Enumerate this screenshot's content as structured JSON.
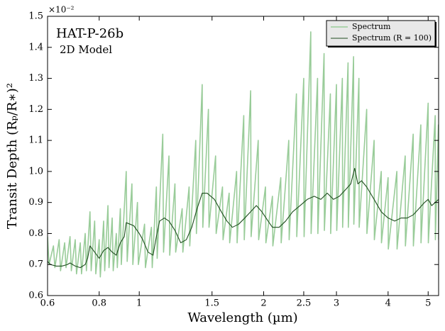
{
  "chart_data": {
    "type": "line",
    "title": "HAT-P-26b",
    "subtitle": "2D Model",
    "xlabel": "Wavelength (µm)",
    "ylabel": "Transit Depth (Rₚ/R∗)²",
    "y_offset_label": "×10⁻²",
    "xscale": "log",
    "xlim": [
      0.6,
      5.3
    ],
    "xticks": [
      0.6,
      0.8,
      1,
      1.5,
      2,
      2.5,
      3,
      4,
      5
    ],
    "ylim": [
      0.6,
      1.5
    ],
    "yticks": [
      0.6,
      0.7,
      0.8,
      0.9,
      {
        "value": 1,
        "label": "1.0"
      },
      1.1,
      1.2,
      1.3,
      1.4,
      1.5
    ],
    "legend": "upper right",
    "series": [
      {
        "name": "Spectrum",
        "color": "#99cc99",
        "x": [
          0.6,
          0.605,
          0.62,
          0.625,
          0.64,
          0.645,
          0.66,
          0.665,
          0.68,
          0.685,
          0.7,
          0.705,
          0.72,
          0.725,
          0.74,
          0.745,
          0.76,
          0.765,
          0.78,
          0.785,
          0.8,
          0.805,
          0.82,
          0.825,
          0.84,
          0.845,
          0.86,
          0.865,
          0.88,
          0.885,
          0.9,
          0.905,
          0.93,
          0.935,
          0.96,
          0.965,
          0.99,
          0.995,
          1.03,
          1.035,
          1.07,
          1.075,
          1.1,
          1.105,
          1.14,
          1.145,
          1.18,
          1.185,
          1.22,
          1.225,
          1.27,
          1.275,
          1.32,
          1.325,
          1.37,
          1.375,
          1.42,
          1.425,
          1.47,
          1.475,
          1.53,
          1.535,
          1.59,
          1.595,
          1.65,
          1.655,
          1.72,
          1.725,
          1.79,
          1.795,
          1.86,
          1.865,
          1.94,
          1.945,
          2.02,
          2.025,
          2.1,
          2.105,
          2.2,
          2.205,
          2.3,
          2.305,
          2.4,
          2.405,
          2.5,
          2.505,
          2.6,
          2.605,
          2.7,
          2.705,
          2.8,
          2.805,
          2.9,
          2.905,
          3.0,
          3.005,
          3.1,
          3.105,
          3.2,
          3.205,
          3.3,
          3.305,
          3.4,
          3.405,
          3.55,
          3.555,
          3.7,
          3.705,
          3.85,
          3.855,
          4.0,
          4.005,
          4.2,
          4.205,
          4.4,
          4.405,
          4.6,
          4.605,
          4.8,
          4.805,
          5.0,
          5.005,
          5.2,
          5.205,
          5.295,
          5.3
        ],
        "values": [
          0.79,
          0.7,
          0.76,
          0.69,
          0.78,
          0.68,
          0.77,
          0.69,
          0.79,
          0.68,
          0.78,
          0.67,
          0.77,
          0.67,
          0.8,
          0.68,
          0.87,
          0.68,
          0.84,
          0.67,
          0.78,
          0.66,
          0.84,
          0.68,
          0.89,
          0.69,
          0.85,
          0.68,
          0.8,
          0.69,
          0.88,
          0.7,
          1.0,
          0.71,
          0.96,
          0.7,
          0.9,
          0.7,
          0.83,
          0.69,
          0.82,
          0.69,
          0.95,
          0.72,
          1.12,
          0.74,
          1.05,
          0.73,
          0.96,
          0.74,
          0.88,
          0.74,
          0.95,
          0.76,
          1.1,
          0.8,
          1.28,
          0.82,
          1.2,
          0.82,
          1.05,
          0.8,
          0.95,
          0.78,
          0.93,
          0.77,
          1.0,
          0.77,
          1.18,
          0.78,
          1.26,
          0.79,
          1.1,
          0.78,
          0.95,
          0.77,
          0.92,
          0.76,
          0.98,
          0.77,
          1.1,
          0.78,
          1.25,
          0.79,
          1.3,
          0.79,
          1.45,
          0.8,
          1.3,
          0.8,
          1.38,
          0.81,
          1.25,
          0.8,
          1.28,
          0.81,
          1.3,
          0.82,
          1.35,
          0.82,
          1.37,
          0.83,
          1.3,
          0.82,
          1.2,
          0.8,
          1.1,
          0.78,
          1.0,
          0.77,
          0.98,
          0.75,
          1.0,
          0.75,
          1.05,
          0.76,
          1.12,
          0.76,
          1.15,
          0.77,
          1.22,
          0.77,
          1.18,
          0.78,
          1.15,
          0.78
        ]
      },
      {
        "name": "Spectrum (R = 100)",
        "color": "#1f4d1f",
        "x": [
          0.6,
          0.61,
          0.63,
          0.65,
          0.67,
          0.68,
          0.7,
          0.72,
          0.74,
          0.75,
          0.76,
          0.78,
          0.8,
          0.82,
          0.84,
          0.86,
          0.88,
          0.9,
          0.92,
          0.93,
          0.95,
          0.97,
          1.0,
          1.02,
          1.05,
          1.08,
          1.1,
          1.12,
          1.15,
          1.18,
          1.22,
          1.26,
          1.3,
          1.34,
          1.38,
          1.42,
          1.46,
          1.52,
          1.58,
          1.63,
          1.68,
          1.74,
          1.8,
          1.86,
          1.92,
          1.98,
          2.05,
          2.1,
          2.18,
          2.26,
          2.35,
          2.45,
          2.55,
          2.65,
          2.75,
          2.85,
          2.95,
          3.05,
          3.15,
          3.25,
          3.32,
          3.38,
          3.45,
          3.55,
          3.7,
          3.85,
          4.0,
          4.15,
          4.3,
          4.45,
          4.6,
          4.75,
          4.9,
          5.0,
          5.1,
          5.2,
          5.3
        ],
        "values": [
          0.71,
          0.7,
          0.695,
          0.695,
          0.7,
          0.705,
          0.695,
          0.69,
          0.7,
          0.72,
          0.76,
          0.74,
          0.72,
          0.745,
          0.755,
          0.74,
          0.73,
          0.77,
          0.79,
          0.835,
          0.83,
          0.825,
          0.8,
          0.78,
          0.74,
          0.73,
          0.79,
          0.84,
          0.85,
          0.84,
          0.81,
          0.77,
          0.78,
          0.82,
          0.88,
          0.93,
          0.93,
          0.91,
          0.87,
          0.84,
          0.82,
          0.83,
          0.85,
          0.87,
          0.89,
          0.87,
          0.84,
          0.82,
          0.82,
          0.84,
          0.87,
          0.89,
          0.91,
          0.92,
          0.91,
          0.93,
          0.91,
          0.92,
          0.94,
          0.96,
          1.01,
          0.96,
          0.97,
          0.95,
          0.91,
          0.87,
          0.85,
          0.84,
          0.85,
          0.85,
          0.86,
          0.88,
          0.9,
          0.91,
          0.89,
          0.9,
          0.91
        ]
      }
    ]
  }
}
